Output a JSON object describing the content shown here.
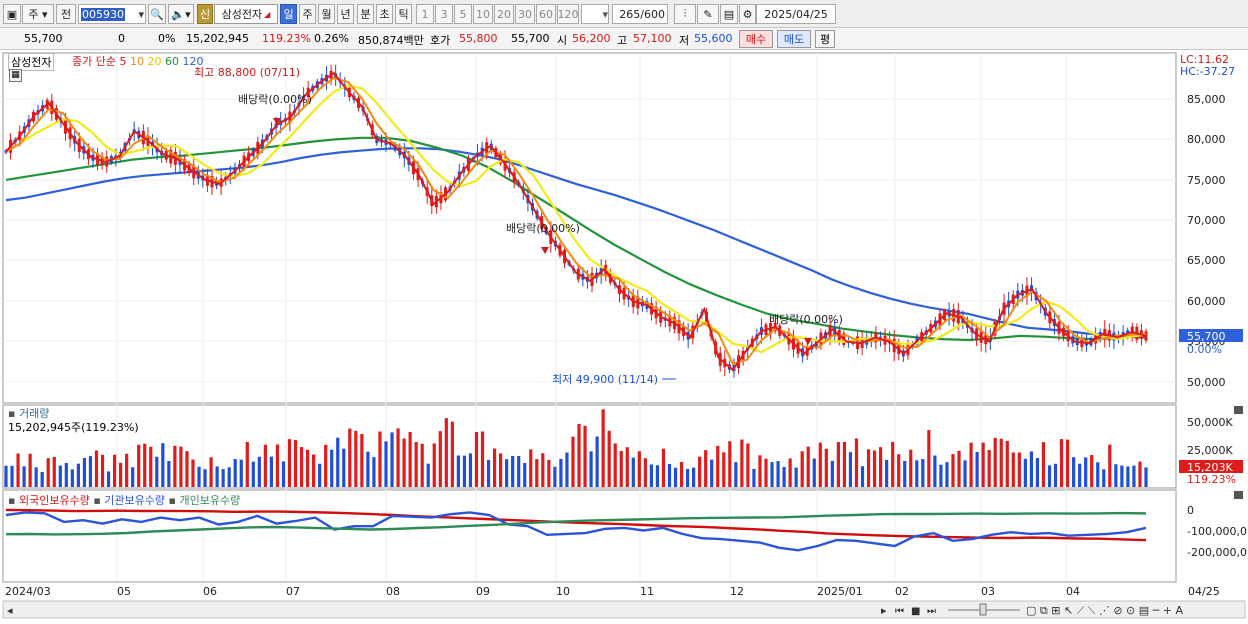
{
  "toolbar": {
    "market_label": "주",
    "prev_label": "전",
    "code": "005930",
    "stock_name": "삼성전자",
    "badge_credit": "신",
    "periods": [
      "일",
      "주",
      "월",
      "년",
      "분",
      "초",
      "틱"
    ],
    "selected_period": "일",
    "intervals": [
      "1",
      "3",
      "5",
      "10",
      "20",
      "30",
      "60",
      "120"
    ],
    "count": "265",
    "count_max": "/600",
    "date": "2025/04/25"
  },
  "info": {
    "price": "55,700",
    "change": "0",
    "change_pct": "0%",
    "volume": "15,202,945",
    "volume_ratio": "119.23%",
    "turnover_pct": "0.26%",
    "amount": "850,874백만",
    "quote_label": "호가",
    "ask": "55,800",
    "bid": "55,700",
    "open_label": "시",
    "open": "56,200",
    "high_label": "고",
    "high": "57,100",
    "low_label": "저",
    "low": "55,600",
    "buy_label": "매수",
    "sell_label": "매도",
    "avg_label": "평"
  },
  "price_panel": {
    "stock_tag": "삼성전자",
    "legend_title": "종가 단순",
    "ma_periods": [
      "5",
      "10",
      "20",
      "60",
      "120"
    ],
    "ma_colors": [
      "#e01b1b",
      "#f08a10",
      "#f4ea18",
      "#23943a",
      "#2e5fdd"
    ],
    "max_label": "최고 88,800 (07/11)",
    "min_label": "최저 49,900 (11/14)",
    "dividend_label": "배당락(0.00%)",
    "lc_label": "LC:11.62",
    "hc_label": "HC:-37.27",
    "current_price_tag": "55,700",
    "current_pct_tag": "0.00%",
    "y_labels": [
      "85,000",
      "80,000",
      "75,000",
      "70,000",
      "65,000",
      "60,000",
      "55,000",
      "50,000"
    ]
  },
  "volume_panel": {
    "title": "거래량",
    "value": "15,202,945주(119.23%)",
    "y_labels": [
      "50,000K",
      "25,000K",
      "0"
    ],
    "current_tag": "15,203K",
    "current_pct": "119.23%"
  },
  "holdings_panel": {
    "legend": [
      "외국인보유수량",
      "기관보유수량",
      "개인보유수량"
    ],
    "colors": [
      "#d10d0d",
      "#2b55d8",
      "#2e8b57"
    ],
    "y_labels": [
      "0",
      "-100,000,0",
      "-200,000,0"
    ]
  },
  "x_axis": {
    "labels": [
      "2024/03",
      "05",
      "06",
      "07",
      "08",
      "09",
      "10",
      "11",
      "12",
      "2025/01",
      "02",
      "03",
      "04"
    ],
    "right_label": "04/25"
  },
  "chart_data": {
    "type": "line",
    "title": "",
    "x_ticks": [
      "2024/03",
      "05",
      "06",
      "07",
      "08",
      "09",
      "10",
      "11",
      "12",
      "2025/01",
      "02",
      "03",
      "04"
    ],
    "price_ylim": [
      48500,
      89000
    ],
    "close": [
      78500,
      80500,
      83000,
      84500,
      82000,
      79500,
      77800,
      77200,
      78000,
      81000,
      79800,
      78200,
      77600,
      76200,
      75000,
      74500,
      76000,
      77800,
      79500,
      81800,
      82800,
      85500,
      87000,
      88200,
      86000,
      84000,
      80000,
      79500,
      78000,
      75500,
      72000,
      73500,
      76000,
      78000,
      79200,
      77000,
      74500,
      71500,
      68500,
      66000,
      63500,
      62500,
      64000,
      61500,
      60000,
      59500,
      58000,
      57200,
      55500,
      59000,
      53000,
      51500,
      54000,
      56300,
      56800,
      55200,
      53500,
      55000,
      56500,
      55000,
      54800,
      55500,
      55000,
      53500,
      55200,
      56800,
      58500,
      58000,
      56000,
      55000,
      59000,
      60800,
      61500,
      58500,
      56500,
      55000,
      54800,
      56000,
      55500,
      56200,
      55700
    ],
    "ma120": [
      72500,
      72800,
      73300,
      73800,
      74300,
      74800,
      75200,
      75500,
      75700,
      75900,
      76100,
      76300,
      76500,
      76800,
      77200,
      77700,
      78100,
      78400,
      78600,
      78800,
      78900,
      78900,
      78800,
      78500,
      78100,
      77600,
      76900,
      76100,
      75300,
      74500,
      73800,
      73100,
      72300,
      71500,
      70600,
      69700,
      68800,
      67800,
      66800,
      65800,
      64800,
      63800,
      62700,
      61800,
      61000,
      60300,
      59700,
      59200,
      58800,
      58400,
      57800,
      57200,
      56700,
      56500,
      56300,
      56000,
      55800,
      55600,
      55500
    ],
    "ma60": [
      75000,
      75500,
      76000,
      76500,
      77000,
      77500,
      77800,
      78000,
      78300,
      78600,
      78900,
      79300,
      79700,
      80000,
      80200,
      80200,
      79800,
      79000,
      78000,
      76600,
      74800,
      72800,
      70900,
      68900,
      67000,
      65300,
      63600,
      62100,
      60800,
      59600,
      58500,
      57700,
      57200,
      56600,
      56200,
      55800,
      55500,
      55300,
      55200,
      55400,
      55700,
      55600,
      55400,
      55300,
      55500,
      55700
    ],
    "volume_k": [
      30000,
      22000,
      25000,
      18000,
      20000,
      24000,
      27000,
      21000,
      19000,
      25000,
      32000,
      40000,
      28000,
      22000,
      21000,
      18000,
      24000,
      35000,
      30000,
      33000,
      38000,
      28000,
      25000,
      45000,
      40000,
      32000,
      29000,
      50000,
      36000,
      33000,
      26000,
      45000,
      30000,
      42000,
      28000,
      25000,
      35000,
      24000,
      22000,
      29000,
      43000,
      46000,
      48000,
      31000,
      27000,
      22000,
      24000,
      19000,
      22000,
      23000,
      26000,
      31000,
      27000,
      22000,
      25000,
      21000,
      26000,
      33000,
      29000,
      38000,
      27000,
      31000,
      28000,
      24000,
      25000,
      38000,
      27000,
      29000,
      34000,
      30000,
      31000,
      23000,
      40000,
      28000,
      33000,
      26000,
      28000,
      24000,
      30000,
      20000,
      15203
    ],
    "volume_ylim": [
      0,
      62000
    ],
    "foreign_holdings": [
      8,
      10,
      14,
      18,
      16,
      15,
      17,
      16,
      18,
      20,
      24,
      22,
      22,
      26,
      30,
      36,
      44,
      52,
      62,
      70,
      78,
      86,
      94,
      102,
      110,
      118,
      124,
      130,
      138,
      146,
      152,
      158,
      168,
      176,
      188,
      196,
      210,
      218,
      226,
      232,
      236,
      240,
      244,
      248,
      250,
      246,
      250,
      254,
      256,
      262,
      268
    ],
    "institution_holdings": [
      14,
      8,
      10,
      30,
      26,
      34,
      24,
      30,
      20,
      26,
      20,
      36,
      30,
      16,
      34,
      28,
      20,
      48,
      40,
      40,
      16,
      18,
      20,
      12,
      8,
      14,
      36,
      40,
      60,
      58,
      56,
      46,
      44,
      50,
      44,
      58,
      68,
      70,
      74,
      78,
      90,
      96,
      86,
      72,
      74,
      80,
      86,
      64,
      56,
      74,
      70,
      60,
      54,
      58,
      56,
      62,
      60,
      58,
      54,
      44
    ],
    "individual_holdings": [
      290,
      288,
      292,
      290,
      286,
      278,
      264,
      254,
      244,
      234,
      224,
      220,
      224,
      232,
      238,
      244,
      240,
      230,
      222,
      210,
      200,
      188,
      176,
      166,
      158,
      152,
      148,
      142,
      136,
      132,
      130,
      128,
      126,
      118,
      110,
      104,
      96,
      94,
      94,
      92,
      90,
      92,
      90,
      88,
      90,
      88,
      86,
      88
    ],
    "holdings_ylim": [
      -300,
      30
    ]
  }
}
